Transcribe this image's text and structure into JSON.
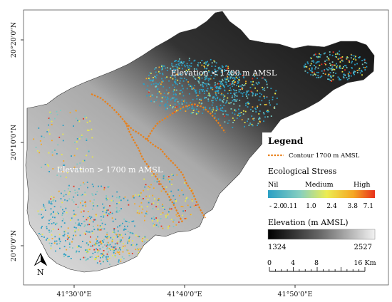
{
  "map": {
    "lon_ticks": [
      "41°30'0\"E",
      "41°40'0\"E",
      "41°50'0\"E"
    ],
    "lat_ticks": [
      "20°20'0\"N",
      "20°10'0\"N",
      "20°0'0\"N"
    ],
    "labels": {
      "low": "Elevation < 1700 m AMSL",
      "high": "Elevation > 1700 m AMSL"
    },
    "north_label": "N"
  },
  "legend": {
    "title": "Legend",
    "contour_label": "Contour 1700 m AMSL",
    "contour_color": "#e8801a",
    "stress_title": "Ecological Stress",
    "stress_classes": [
      "Nil",
      "Medium",
      "High"
    ],
    "stress_values": [
      "- 2.0",
      "0.11",
      "1.0",
      "2.4",
      "3.8",
      "7.1"
    ],
    "stress_colors": [
      "#2b9fc4",
      "#7cc9c2",
      "#e8e84a",
      "#f5a623",
      "#e8301c"
    ],
    "elevation_title": "Elevation (m AMSL)",
    "elevation_min": "1324",
    "elevation_max": "2527",
    "scale_ticks": [
      "0",
      "4",
      "8",
      "16 Km"
    ]
  }
}
